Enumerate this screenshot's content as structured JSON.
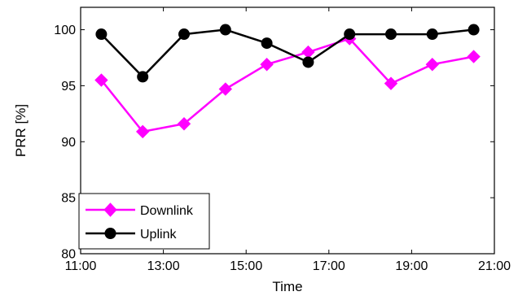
{
  "chart_data": {
    "type": "line",
    "title": "",
    "xlabel": "Time",
    "ylabel": "PRR [%]",
    "xlim": [
      "11:00",
      "21:00"
    ],
    "ylim": [
      80,
      102
    ],
    "x_ticks": [
      "11:00",
      "13:00",
      "15:00",
      "17:00",
      "19:00",
      "21:00"
    ],
    "y_ticks": [
      80,
      85,
      90,
      95,
      100
    ],
    "grid": false,
    "legend_position": "bottom-left",
    "series": [
      {
        "name": "Downlink",
        "color": "#ff00ff",
        "marker": "diamond",
        "x": [
          "11:30",
          "12:30",
          "13:30",
          "14:30",
          "15:30",
          "16:30",
          "17:30",
          "18:30",
          "19:30",
          "20:30"
        ],
        "values": [
          95.5,
          90.9,
          91.6,
          94.7,
          96.9,
          98.0,
          99.2,
          95.2,
          96.9,
          97.6
        ]
      },
      {
        "name": "Uplink",
        "color": "#000000",
        "marker": "circle",
        "x": [
          "11:30",
          "12:30",
          "13:30",
          "14:30",
          "15:30",
          "16:30",
          "17:30",
          "18:30",
          "19:30",
          "20:30"
        ],
        "values": [
          99.6,
          95.8,
          99.6,
          100.0,
          98.8,
          97.1,
          99.6,
          99.6,
          99.6,
          100.0
        ]
      }
    ]
  }
}
